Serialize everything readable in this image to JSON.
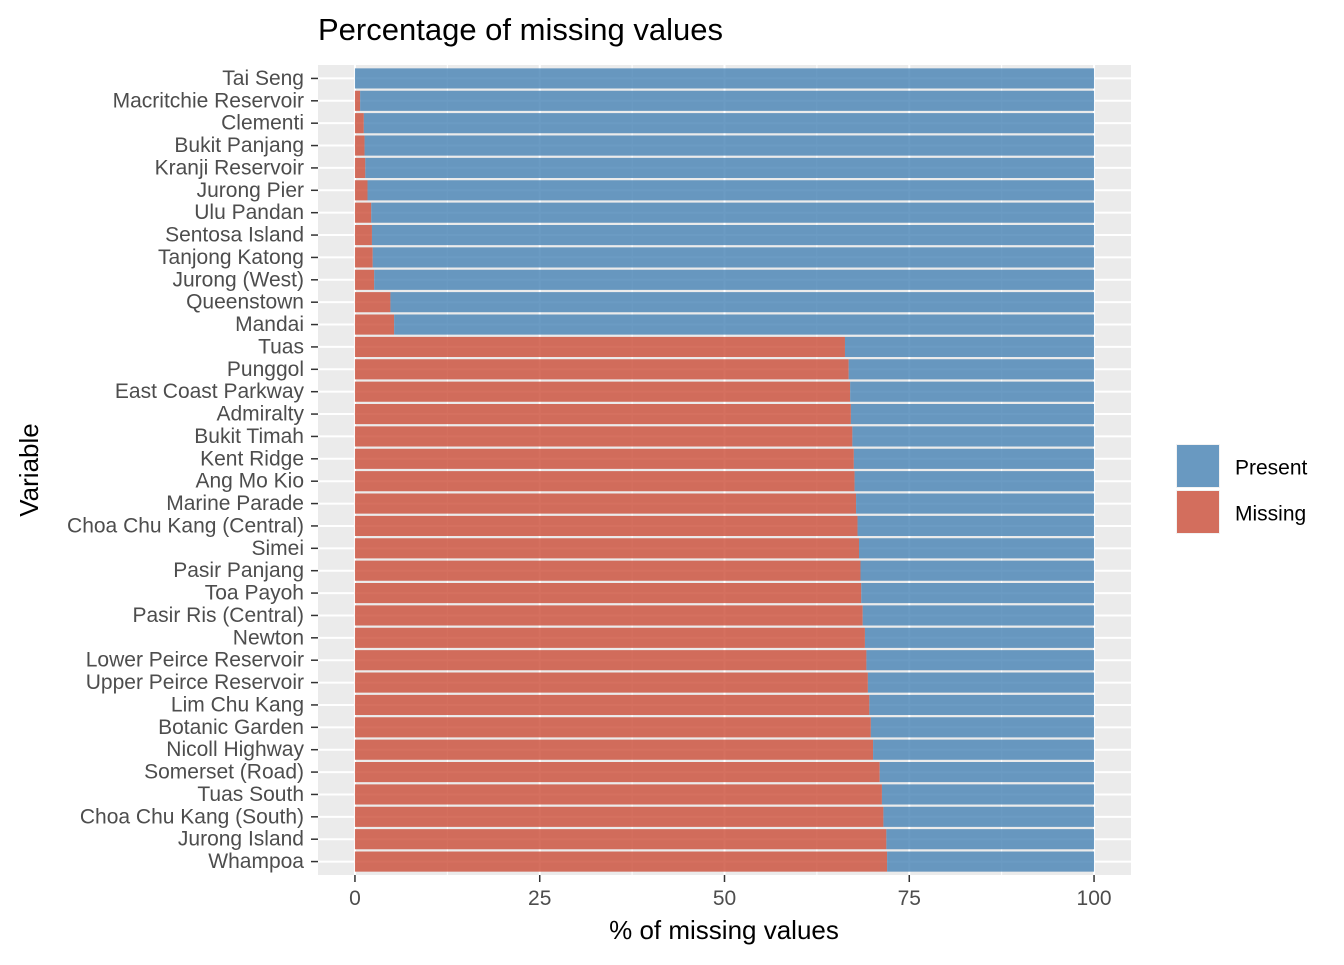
{
  "chart_data": {
    "type": "bar",
    "orientation": "horizontal",
    "stacked": true,
    "title": "Percentage of missing values",
    "xlabel": "% of missing values",
    "ylabel": "Variable",
    "xlim": [
      -5,
      105
    ],
    "xticks": [
      0,
      25,
      50,
      75,
      100
    ],
    "xtick_labels": [
      "0",
      "25",
      "50",
      "75",
      "100"
    ],
    "grid": true,
    "legend_position": "right",
    "categories": [
      "Tai Seng",
      "Macritchie Reservoir",
      "Clementi",
      "Bukit Panjang",
      "Kranji Reservoir",
      "Jurong Pier",
      "Ulu Pandan",
      "Sentosa Island",
      "Tanjong Katong",
      "Jurong (West)",
      "Queenstown",
      "Mandai",
      "Tuas",
      "Punggol",
      "East Coast Parkway",
      "Admiralty",
      "Bukit Timah",
      "Kent Ridge",
      "Ang Mo Kio",
      "Marine Parade",
      "Choa Chu Kang (Central)",
      "Simei",
      "Pasir Panjang",
      "Toa Payoh",
      "Pasir Ris (Central)",
      "Newton",
      "Lower Peirce Reservoir",
      "Upper Peirce Reservoir",
      "Lim Chu Kang",
      "Botanic Garden",
      "Nicoll Highway",
      "Somerset (Road)",
      "Tuas South",
      "Choa Chu Kang (South)",
      "Jurong Island",
      "Whampoa"
    ],
    "series": [
      {
        "name": "Missing",
        "color": "#CB4C37",
        "values": [
          0.0,
          0.7,
          1.2,
          1.3,
          1.4,
          1.7,
          2.2,
          2.3,
          2.4,
          2.6,
          4.8,
          5.3,
          66.3,
          66.8,
          67.0,
          67.1,
          67.3,
          67.5,
          67.6,
          67.8,
          68.0,
          68.2,
          68.4,
          68.5,
          68.7,
          69.0,
          69.2,
          69.4,
          69.6,
          69.8,
          70.1,
          71.0,
          71.3,
          71.5,
          71.9,
          72.0
        ]
      },
      {
        "name": "Present",
        "color": "#4682B4",
        "values": [
          100.0,
          99.3,
          98.8,
          98.7,
          98.6,
          98.3,
          97.8,
          97.7,
          97.6,
          97.4,
          95.2,
          94.7,
          33.7,
          33.2,
          33.0,
          32.9,
          32.7,
          32.5,
          32.4,
          32.2,
          32.0,
          31.8,
          31.6,
          31.5,
          31.3,
          31.0,
          30.8,
          30.6,
          30.4,
          30.2,
          29.9,
          29.0,
          28.7,
          28.5,
          28.1,
          28.0
        ]
      }
    ],
    "legend": [
      "Present",
      "Missing"
    ]
  }
}
